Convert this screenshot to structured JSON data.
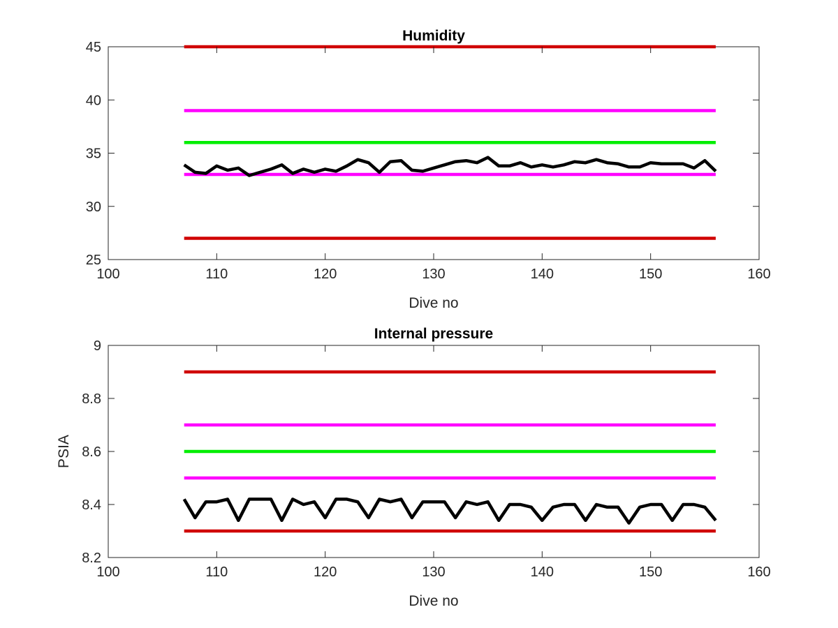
{
  "chart_data": [
    {
      "type": "line",
      "title": "Humidity",
      "xlabel": "Dive no",
      "ylabel": "",
      "xlim": [
        100,
        160
      ],
      "ylim": [
        25,
        45
      ],
      "xticks": [
        100,
        110,
        120,
        130,
        140,
        150,
        160
      ],
      "yticks": [
        25,
        30,
        35,
        40,
        45
      ],
      "xtick_labels": [
        "100",
        "110",
        "120",
        "130",
        "140",
        "150",
        "160"
      ],
      "ytick_labels": [
        "25",
        "30",
        "35",
        "40",
        "45"
      ],
      "grid": false,
      "series": [
        {
          "color": "#d00000",
          "x": [
            107,
            156
          ],
          "y": [
            45,
            45
          ]
        },
        {
          "color": "#ff00ff",
          "x": [
            107,
            156
          ],
          "y": [
            39,
            39
          ]
        },
        {
          "color": "#00ee00",
          "x": [
            107,
            156
          ],
          "y": [
            36,
            36
          ]
        },
        {
          "color": "#ff00ff",
          "x": [
            107,
            156
          ],
          "y": [
            33,
            33
          ]
        },
        {
          "color": "#d00000",
          "x": [
            107,
            156
          ],
          "y": [
            27,
            27
          ]
        },
        {
          "color": "#000000",
          "x": [
            107,
            108,
            109,
            110,
            111,
            112,
            113,
            114,
            115,
            116,
            117,
            118,
            119,
            120,
            121,
            122,
            123,
            124,
            125,
            126,
            127,
            128,
            129,
            130,
            131,
            132,
            133,
            134,
            135,
            136,
            137,
            138,
            139,
            140,
            141,
            142,
            143,
            144,
            145,
            146,
            147,
            148,
            149,
            150,
            151,
            152,
            153,
            154,
            155,
            156
          ],
          "y": [
            33.9,
            33.2,
            33.1,
            33.8,
            33.4,
            33.6,
            32.9,
            33.2,
            33.5,
            33.9,
            33.1,
            33.5,
            33.2,
            33.5,
            33.3,
            33.8,
            34.4,
            34.1,
            33.2,
            34.2,
            34.3,
            33.4,
            33.3,
            33.6,
            33.9,
            34.2,
            34.3,
            34.1,
            34.6,
            33.8,
            33.8,
            34.1,
            33.7,
            33.9,
            33.7,
            33.9,
            34.2,
            34.1,
            34.4,
            34.1,
            34.0,
            33.7,
            33.7,
            34.1,
            34.0,
            34.0,
            34.0,
            33.6,
            34.3,
            33.3
          ]
        }
      ]
    },
    {
      "type": "line",
      "title": "Internal pressure",
      "xlabel": "Dive no",
      "ylabel": "PSIA",
      "xlim": [
        100,
        160
      ],
      "ylim": [
        8.2,
        9
      ],
      "xticks": [
        100,
        110,
        120,
        130,
        140,
        150,
        160
      ],
      "yticks": [
        8.2,
        8.4,
        8.6,
        8.8,
        9
      ],
      "xtick_labels": [
        "100",
        "110",
        "120",
        "130",
        "140",
        "150",
        "160"
      ],
      "ytick_labels": [
        "8.2",
        "8.4",
        "8.6",
        "8.8",
        "9"
      ],
      "grid": false,
      "series": [
        {
          "color": "#d00000",
          "x": [
            107,
            156
          ],
          "y": [
            8.9,
            8.9
          ]
        },
        {
          "color": "#ff00ff",
          "x": [
            107,
            156
          ],
          "y": [
            8.7,
            8.7
          ]
        },
        {
          "color": "#00ee00",
          "x": [
            107,
            156
          ],
          "y": [
            8.6,
            8.6
          ]
        },
        {
          "color": "#ff00ff",
          "x": [
            107,
            156
          ],
          "y": [
            8.5,
            8.5
          ]
        },
        {
          "color": "#d00000",
          "x": [
            107,
            156
          ],
          "y": [
            8.3,
            8.3
          ]
        },
        {
          "color": "#000000",
          "x": [
            107,
            108,
            109,
            110,
            111,
            112,
            113,
            114,
            115,
            116,
            117,
            118,
            119,
            120,
            121,
            122,
            123,
            124,
            125,
            126,
            127,
            128,
            129,
            130,
            131,
            132,
            133,
            134,
            135,
            136,
            137,
            138,
            139,
            140,
            141,
            142,
            143,
            144,
            145,
            146,
            147,
            148,
            149,
            150,
            151,
            152,
            153,
            154,
            155,
            156
          ],
          "y": [
            8.42,
            8.35,
            8.41,
            8.41,
            8.42,
            8.34,
            8.42,
            8.42,
            8.42,
            8.34,
            8.42,
            8.4,
            8.41,
            8.35,
            8.42,
            8.42,
            8.41,
            8.35,
            8.42,
            8.41,
            8.42,
            8.35,
            8.41,
            8.41,
            8.41,
            8.35,
            8.41,
            8.4,
            8.41,
            8.34,
            8.4,
            8.4,
            8.39,
            8.34,
            8.39,
            8.4,
            8.4,
            8.34,
            8.4,
            8.39,
            8.39,
            8.33,
            8.39,
            8.4,
            8.4,
            8.34,
            8.4,
            8.4,
            8.39,
            8.34
          ]
        }
      ]
    }
  ]
}
